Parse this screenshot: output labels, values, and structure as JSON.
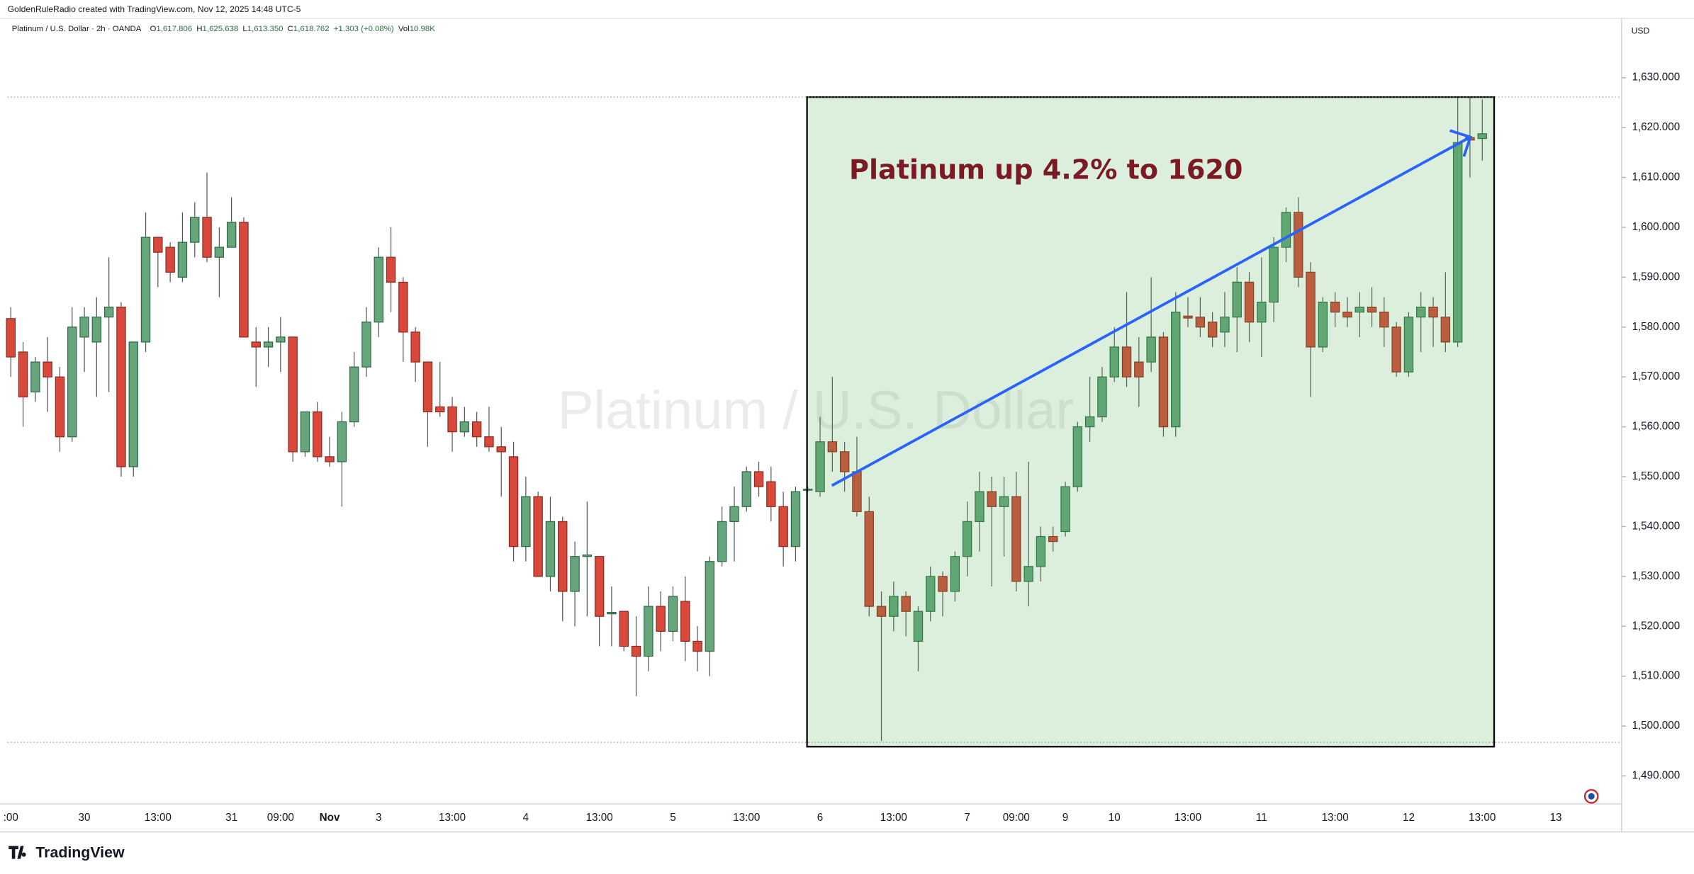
{
  "chart_data": {
    "type": "candlestick",
    "credit": "GoldenRuleRadio created with TradingView.com, Nov 12, 2025 14:48 UTC-5",
    "symbol": "Platinum / U.S. Dollar · 2h · OANDA",
    "ohlc_legend": [
      {
        "label": "O",
        "value": "1,617.806"
      },
      {
        "label": "H",
        "value": "1,625.638"
      },
      {
        "label": "L",
        "value": "1,613.350"
      },
      {
        "label": "C",
        "value": "1,618.762"
      }
    ],
    "change": "+1.303 (+0.08%)",
    "volume_label": "Vol",
    "volume": "10.98K",
    "currency": "USD",
    "watermark": "Platinum / U.S. Dollar",
    "annotation": "Platinum up 4.2% to 1620",
    "footer": "TradingView",
    "up_color": "#67a67c",
    "down_color": "#d9493b",
    "up_border": "#2d6a44",
    "down_border": "#8c2a1f",
    "wick_color": "#555555",
    "grid": false,
    "categories": [
      ":00",
      null,
      null,
      null,
      null,
      null,
      "30",
      null,
      null,
      null,
      null,
      null,
      "13:00",
      null,
      null,
      null,
      null,
      null,
      "31",
      null,
      null,
      null,
      "09:00",
      null,
      null,
      null,
      "Nov",
      null,
      null,
      null,
      "3",
      null,
      null,
      null,
      null,
      null,
      "13:00",
      null,
      null,
      null,
      null,
      null,
      "4",
      null,
      null,
      null,
      null,
      null,
      "13:00",
      null,
      null,
      null,
      null,
      null,
      "5",
      null,
      null,
      null,
      null,
      null,
      "13:00",
      null,
      null,
      null,
      null,
      null,
      "6",
      null,
      null,
      null,
      null,
      null,
      "13:00",
      null,
      null,
      null,
      null,
      null,
      "7",
      null,
      null,
      null,
      "09:00",
      null,
      null,
      null,
      "9",
      null,
      null,
      null,
      "10",
      null,
      null,
      null,
      null,
      null,
      "13:00",
      null,
      null,
      null,
      null,
      null,
      "11",
      null,
      null,
      null,
      null,
      null,
      "13:00",
      null,
      null,
      null,
      null,
      null,
      "12",
      null,
      null,
      null,
      null,
      null,
      "13:00",
      null,
      null,
      null,
      null,
      null,
      "13"
    ],
    "open": [
      1581.7,
      1575,
      1567,
      1573,
      1570,
      1558,
      1578,
      1577,
      1582,
      1584,
      1552,
      1577,
      1598,
      1596,
      1590,
      1597,
      1602,
      1594,
      1596,
      1601,
      1577,
      1576,
      1577,
      1578,
      1555,
      1563,
      1554,
      1553,
      1561,
      1572,
      1581,
      1594,
      1589,
      1579,
      1573,
      1564,
      1564,
      1559,
      1561,
      1558,
      1556,
      1554,
      1536,
      1546,
      1530,
      1541,
      1527,
      1534,
      1534,
      1522.5,
      1523,
      1516,
      1514,
      1524,
      1519,
      1525,
      1517,
      1515,
      1533,
      1541,
      1544,
      1551,
      1549,
      1544,
      1536,
      1547.5,
      1547,
      1557,
      1555,
      1551,
      1543,
      1524,
      1522,
      1526,
      1517,
      1523,
      1530,
      1527,
      1534,
      1541,
      1547,
      1544,
      1546,
      1529,
      1532,
      1538,
      1539,
      1548,
      1560,
      1562,
      1570,
      1576,
      1573,
      1573,
      1578,
      1560,
      1582.2,
      1582,
      1581,
      1579,
      1582,
      1589,
      1581,
      1585,
      1596,
      1603,
      1591,
      1576,
      1585,
      1583,
      1583,
      1584,
      1583,
      1580,
      1571,
      1582,
      1584,
      1582,
      1577,
      1618,
      1617.806,
      null,
      null,
      null,
      null,
      null,
      null
    ],
    "high": [
      1584,
      1577,
      1574,
      1578,
      1572,
      1584,
      1584,
      1586,
      1594,
      1585,
      1577,
      1603,
      1598,
      1597,
      1603,
      1605,
      1611,
      1600,
      1606,
      1602,
      1580,
      1580,
      1582,
      1578,
      1563,
      1565,
      1558,
      1563,
      1575,
      1584,
      1596,
      1600,
      1590,
      1580,
      1573,
      1573,
      1566,
      1564,
      1563,
      1564,
      1560,
      1557,
      1550,
      1547,
      1546,
      1542,
      1537,
      1545,
      1534,
      1528,
      1523,
      1522,
      1528,
      1527,
      1528,
      1530,
      1520,
      1534,
      1544,
      1548,
      1552,
      1553,
      1552,
      1547,
      1548,
      1548,
      1562,
      1570,
      1557,
      1558,
      1546,
      1527,
      1529,
      1527,
      1524,
      1532,
      1531,
      1535,
      1545,
      1551,
      1550,
      1550,
      1551,
      1553,
      1540,
      1540,
      1549,
      1561,
      1570,
      1572,
      1580,
      1587,
      1578,
      1590,
      1579,
      1587,
      1586,
      1586,
      1583,
      1587,
      1592,
      1591,
      1594,
      1598,
      1604,
      1606,
      1593,
      1586,
      1587,
      1586,
      1587,
      1588,
      1586,
      1581,
      1583,
      1587,
      1586,
      1591,
      1626,
      1626,
      1625.638,
      null,
      null,
      null,
      null,
      null,
      null
    ],
    "low": [
      1570,
      1560,
      1565,
      1563,
      1555,
      1557,
      1571,
      1566,
      1567,
      1550,
      1550,
      1575,
      1588,
      1589,
      1589,
      1594,
      1593,
      1586,
      1596,
      1578,
      1568,
      1572,
      1571,
      1553,
      1554,
      1553,
      1552,
      1544,
      1560,
      1570,
      1578,
      1583,
      1573,
      1569,
      1556,
      1562,
      1555,
      1558,
      1556,
      1555,
      1546,
      1533,
      1533,
      1530,
      1527,
      1521,
      1520,
      1522,
      1516,
      1516,
      1515,
      1506,
      1511,
      1515,
      1517,
      1513,
      1511,
      1510,
      1532,
      1533,
      1543,
      1546,
      1541,
      1532,
      1533,
      1547,
      1546,
      1551,
      1547,
      1542,
      1522,
      1497,
      1519,
      1518,
      1511,
      1521,
      1522,
      1525,
      1530,
      1535,
      1528,
      1534,
      1527,
      1524,
      1529,
      1535,
      1538,
      1547,
      1557,
      1561,
      1569,
      1568,
      1564,
      1571,
      1558,
      1558,
      1580,
      1578,
      1576,
      1576,
      1575,
      1577,
      1574,
      1581,
      1593,
      1588,
      1566,
      1575,
      1580,
      1580,
      1578,
      1580,
      1576,
      1570,
      1570,
      1575,
      1576,
      1575,
      1576,
      1610,
      1613.35,
      null,
      null,
      null,
      null,
      null,
      null
    ],
    "close": [
      1574,
      1566,
      1573,
      1570,
      1558,
      1580,
      1582,
      1582,
      1584,
      1552,
      1577,
      1598,
      1595,
      1591,
      1597,
      1602,
      1594,
      1596,
      1601,
      1578,
      1576,
      1577,
      1578,
      1555,
      1563,
      1554,
      1553,
      1561,
      1572,
      1581,
      1594,
      1589,
      1579,
      1573,
      1563,
      1563,
      1559,
      1561,
      1558,
      1556,
      1555,
      1536,
      1546,
      1530,
      1541,
      1527,
      1534,
      1534.3,
      1522,
      1522.8,
      1516,
      1514,
      1524,
      1519,
      1526,
      1517,
      1515,
      1533,
      1541,
      1544,
      1551,
      1548,
      1544,
      1536,
      1547,
      1547.5,
      1557,
      1555,
      1551,
      1543,
      1524,
      1522,
      1526,
      1523,
      1523,
      1530,
      1527,
      1534,
      1541,
      1547,
      1544,
      1546,
      1529,
      1532,
      1538,
      1537,
      1548,
      1560,
      1562,
      1570,
      1576,
      1570,
      1570,
      1578,
      1560,
      1583,
      1581.8,
      1580,
      1578,
      1582,
      1589,
      1581,
      1585,
      1596,
      1603,
      1590,
      1576,
      1585,
      1583,
      1582,
      1584,
      1583,
      1580,
      1571,
      1582,
      1584,
      1582,
      1577,
      1617,
      1617.5,
      1618.762,
      null,
      null,
      null,
      null,
      null,
      null
    ],
    "ylim": [
      1484.4,
      1641.9
    ],
    "yticks": [
      {
        "value": 1490,
        "label": "1,490.000"
      },
      {
        "value": 1500,
        "label": "1,500.000"
      },
      {
        "value": 1510,
        "label": "1,510.000"
      },
      {
        "value": 1520,
        "label": "1,520.000"
      },
      {
        "value": 1530,
        "label": "1,530.000"
      },
      {
        "value": 1540,
        "label": "1,540.000"
      },
      {
        "value": 1550,
        "label": "1,550.000"
      },
      {
        "value": 1560,
        "label": "1,560.000"
      },
      {
        "value": 1570,
        "label": "1,570.000"
      },
      {
        "value": 1580,
        "label": "1,580.000"
      },
      {
        "value": 1590,
        "label": "1,590.000"
      },
      {
        "value": 1600,
        "label": "1,600.000"
      },
      {
        "value": 1610,
        "label": "1,610.000"
      },
      {
        "value": 1620,
        "label": "1,620.000"
      },
      {
        "value": 1630,
        "label": "1,630.000"
      }
    ]
  }
}
